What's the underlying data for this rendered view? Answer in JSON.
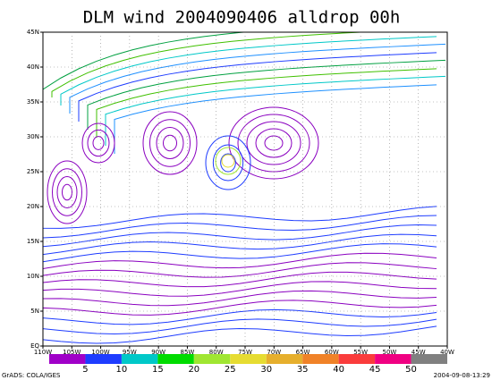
{
  "title": "DLM wind 2004090406 alldrop 00h",
  "lon_labels": [
    "110W",
    "105W",
    "100W",
    "95W",
    "90W",
    "85W",
    "80W",
    "75W",
    "70W",
    "65W",
    "60W",
    "55W",
    "50W",
    "45W",
    "40W"
  ],
  "lat_labels": [
    "EQ",
    "5N",
    "10N",
    "15N",
    "20N",
    "25N",
    "30N",
    "35N",
    "40N",
    "45N"
  ],
  "colorbar": {
    "labels": [
      "5",
      "10",
      "15",
      "20",
      "25",
      "30",
      "35",
      "40",
      "45",
      "50"
    ],
    "colors": [
      "#a000c8",
      "#1e3cff",
      "#00c8c8",
      "#00dc00",
      "#a0e632",
      "#e6dc32",
      "#e6af2d",
      "#f08228",
      "#fa3c3c",
      "#f00082",
      "#808080"
    ]
  },
  "footer": {
    "left": "GrADS: COLA/IGES",
    "right": "2004-09-08-13:29"
  }
}
